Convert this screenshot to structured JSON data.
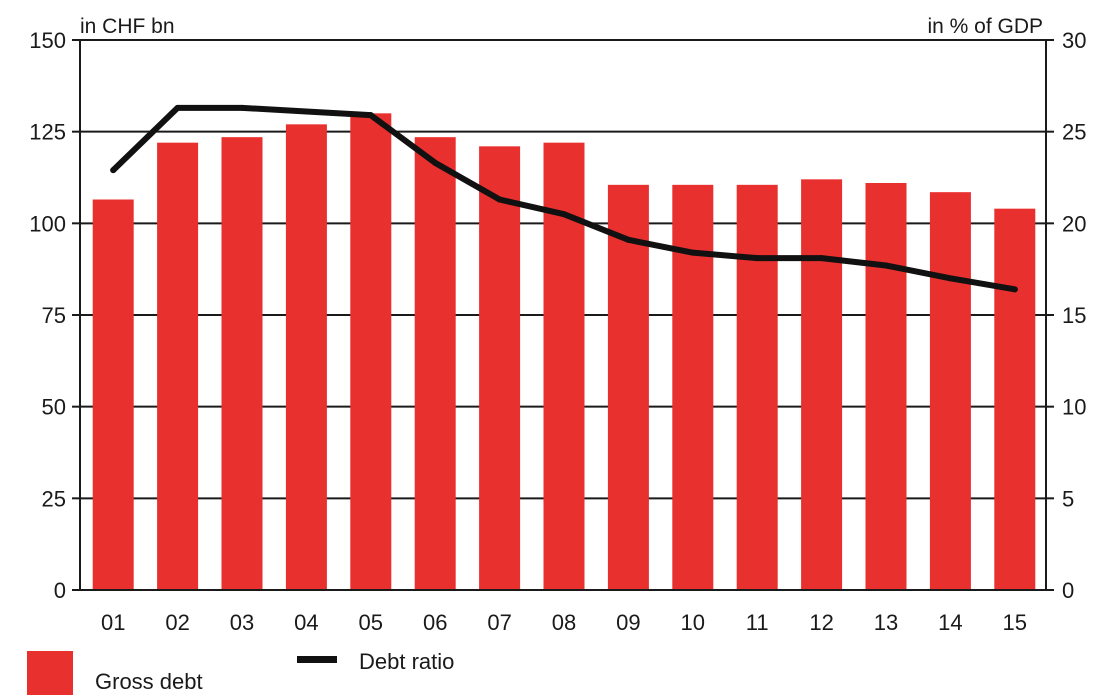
{
  "chart_data": {
    "type": "bar",
    "categories": [
      "01",
      "02",
      "03",
      "04",
      "05",
      "06",
      "07",
      "08",
      "09",
      "10",
      "11",
      "12",
      "13",
      "14",
      "15"
    ],
    "series": [
      {
        "name": "Gross debt",
        "type": "bar",
        "axis": "left",
        "values": [
          106.5,
          122,
          123.5,
          127,
          130,
          123.5,
          121,
          122,
          110.5,
          110.5,
          110.5,
          112,
          111,
          108.5,
          104
        ]
      },
      {
        "name": "Debt ratio",
        "type": "line",
        "axis": "right",
        "values": [
          22.9,
          26.3,
          26.3,
          26.1,
          25.9,
          23.3,
          21.3,
          20.5,
          19.1,
          18.4,
          18.1,
          18.1,
          17.7,
          17.0,
          16.4
        ]
      }
    ],
    "left_axis": {
      "label": "in CHF bn",
      "ylim": [
        0,
        150
      ],
      "ticks": [
        0,
        25,
        50,
        75,
        100,
        125,
        150
      ]
    },
    "right_axis": {
      "label": "in % of GDP",
      "ylim": [
        0,
        30
      ],
      "ticks": [
        0,
        5,
        10,
        15,
        20,
        25,
        30
      ]
    },
    "grid": true,
    "legend_position": "bottom-left",
    "colors": {
      "bar": "#e8302e",
      "line": "#111111",
      "grid": "#1a1a1a"
    }
  }
}
